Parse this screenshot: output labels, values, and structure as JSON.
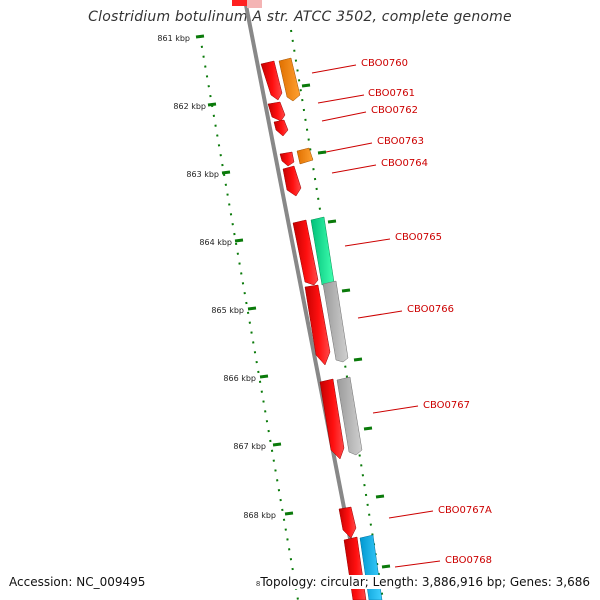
{
  "title": "Clostridium botulinum A str. ATCC 3502, complete genome",
  "footer": {
    "accession": "Accession: NC_009495",
    "summary_stub": "8",
    "summary": "Topology: circular; Length: 3,886,916 bp; Genes: 3,686"
  },
  "ticks": [
    "861 kbp",
    "862 kbp",
    "863 kbp",
    "864 kbp",
    "865 kbp",
    "866 kbp",
    "867 kbp",
    "868 kbp"
  ],
  "genes": [
    "CBO0760",
    "CBO0761",
    "CBO0762",
    "CBO0763",
    "CBO0764",
    "CBO0765",
    "CBO0766",
    "CBO0767",
    "CBO0767A",
    "CBO0768"
  ],
  "colors": {
    "forward_cds": "#ff0000",
    "category_orange": "#ff8c00",
    "category_green": "#00e58f",
    "category_gray": "#b4b4b4",
    "category_blue": "#00b4f0",
    "tick_marks": "#0a7a0a",
    "backbone": "#888888",
    "label_text": "#cc0000"
  }
}
